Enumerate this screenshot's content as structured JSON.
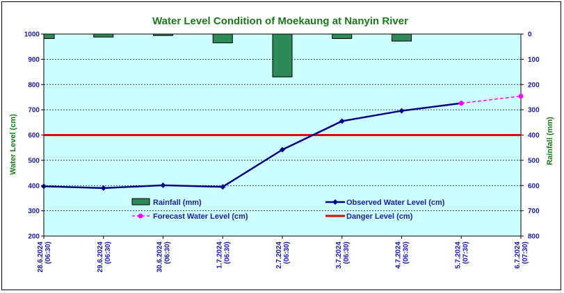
{
  "chart_data": {
    "type": "line",
    "title": "Water Level Condition of Moekaung at Nanyin River",
    "ylabel": "Water Level (cm)",
    "y2label": "Rainfall (mm)",
    "ylim": [
      200,
      1000
    ],
    "y2lim": [
      0,
      800
    ],
    "yticks": [
      "200",
      "300",
      "400",
      "500",
      "600",
      "700",
      "800",
      "900",
      "1000"
    ],
    "y2ticks": [
      "0",
      "100",
      "200",
      "300",
      "400",
      "500",
      "600",
      "700",
      "800"
    ],
    "categories": [
      "28.6.2024 (06:30)",
      "29.6.2024 (06:30)",
      "30.6.2024 (06:30)",
      "1.7.2024 (06:30)",
      "2.7.2024 (06:30)",
      "3.7.2024 (06:30)",
      "4.7.2024 (06:30)",
      "5.7.2024 (07:30)",
      "6.7.2024 (07:30)"
    ],
    "series": [
      {
        "name": "Rainfall (mm)",
        "kind": "bar",
        "axis": "right",
        "color": "#2e8b57",
        "values": [
          18,
          12,
          6,
          35,
          170,
          18,
          28,
          null,
          null
        ]
      },
      {
        "name": "Observed Water Level (cm)",
        "kind": "line",
        "axis": "left",
        "color": "#000080",
        "values": [
          397,
          390,
          401,
          395,
          542,
          655,
          696,
          726,
          null
        ]
      },
      {
        "name": "Forecast Water Level (cm)",
        "kind": "dashed-line",
        "axis": "left",
        "color": "#ff00ff",
        "values": [
          null,
          null,
          null,
          null,
          null,
          null,
          null,
          726,
          754
        ]
      },
      {
        "name": "Danger Level (cm)",
        "kind": "hline",
        "axis": "left",
        "color": "#e00000",
        "values": [
          600,
          600,
          600,
          600,
          600,
          600,
          600,
          600,
          600
        ]
      }
    ],
    "plot_background": "#ccffff",
    "grid": "horizontal dashed",
    "legend": "inside lower-middle"
  }
}
